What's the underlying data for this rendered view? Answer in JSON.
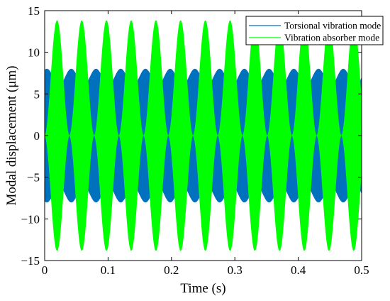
{
  "chart_data": {
    "type": "line",
    "title": "",
    "xlabel": "Time (s)",
    "ylabel": "Modal displacement (μm)",
    "xlim": [
      0,
      0.5
    ],
    "ylim": [
      -15,
      15
    ],
    "x_ticks": [
      0,
      0.1,
      0.2,
      0.3,
      0.4,
      0.5
    ],
    "x_tick_labels": [
      "0",
      "0.1",
      "0.2",
      "0.3",
      "0.4",
      "0.5"
    ],
    "y_ticks": [
      -15,
      -10,
      -5,
      0,
      5,
      10,
      15
    ],
    "y_tick_labels": [
      "−15",
      "−10",
      "−5",
      "0",
      "5",
      "10",
      "15"
    ],
    "grid": false,
    "legend_position": "top-right",
    "series": [
      {
        "name": "Torsional vibration mode",
        "color": "#0072BD",
        "envelope_max": 8.0,
        "envelope_min": 6.0,
        "envelope_peak_times": [
          0.0035,
          0.042,
          0.081,
          0.12,
          0.159,
          0.198,
          0.237,
          0.276,
          0.315,
          0.354,
          0.393,
          0.432,
          0.471,
          0.51
        ]
      },
      {
        "name": "Vibration absorber mode",
        "color": "#00FF00",
        "envelope_max": 13.8,
        "envelope_min": 0,
        "envelope_peak_times": [
          0.0195,
          0.0585,
          0.0975,
          0.1365,
          0.1755,
          0.2145,
          0.2535,
          0.2925,
          0.3315,
          0.3705,
          0.4095,
          0.4485,
          0.4875
        ]
      }
    ]
  }
}
